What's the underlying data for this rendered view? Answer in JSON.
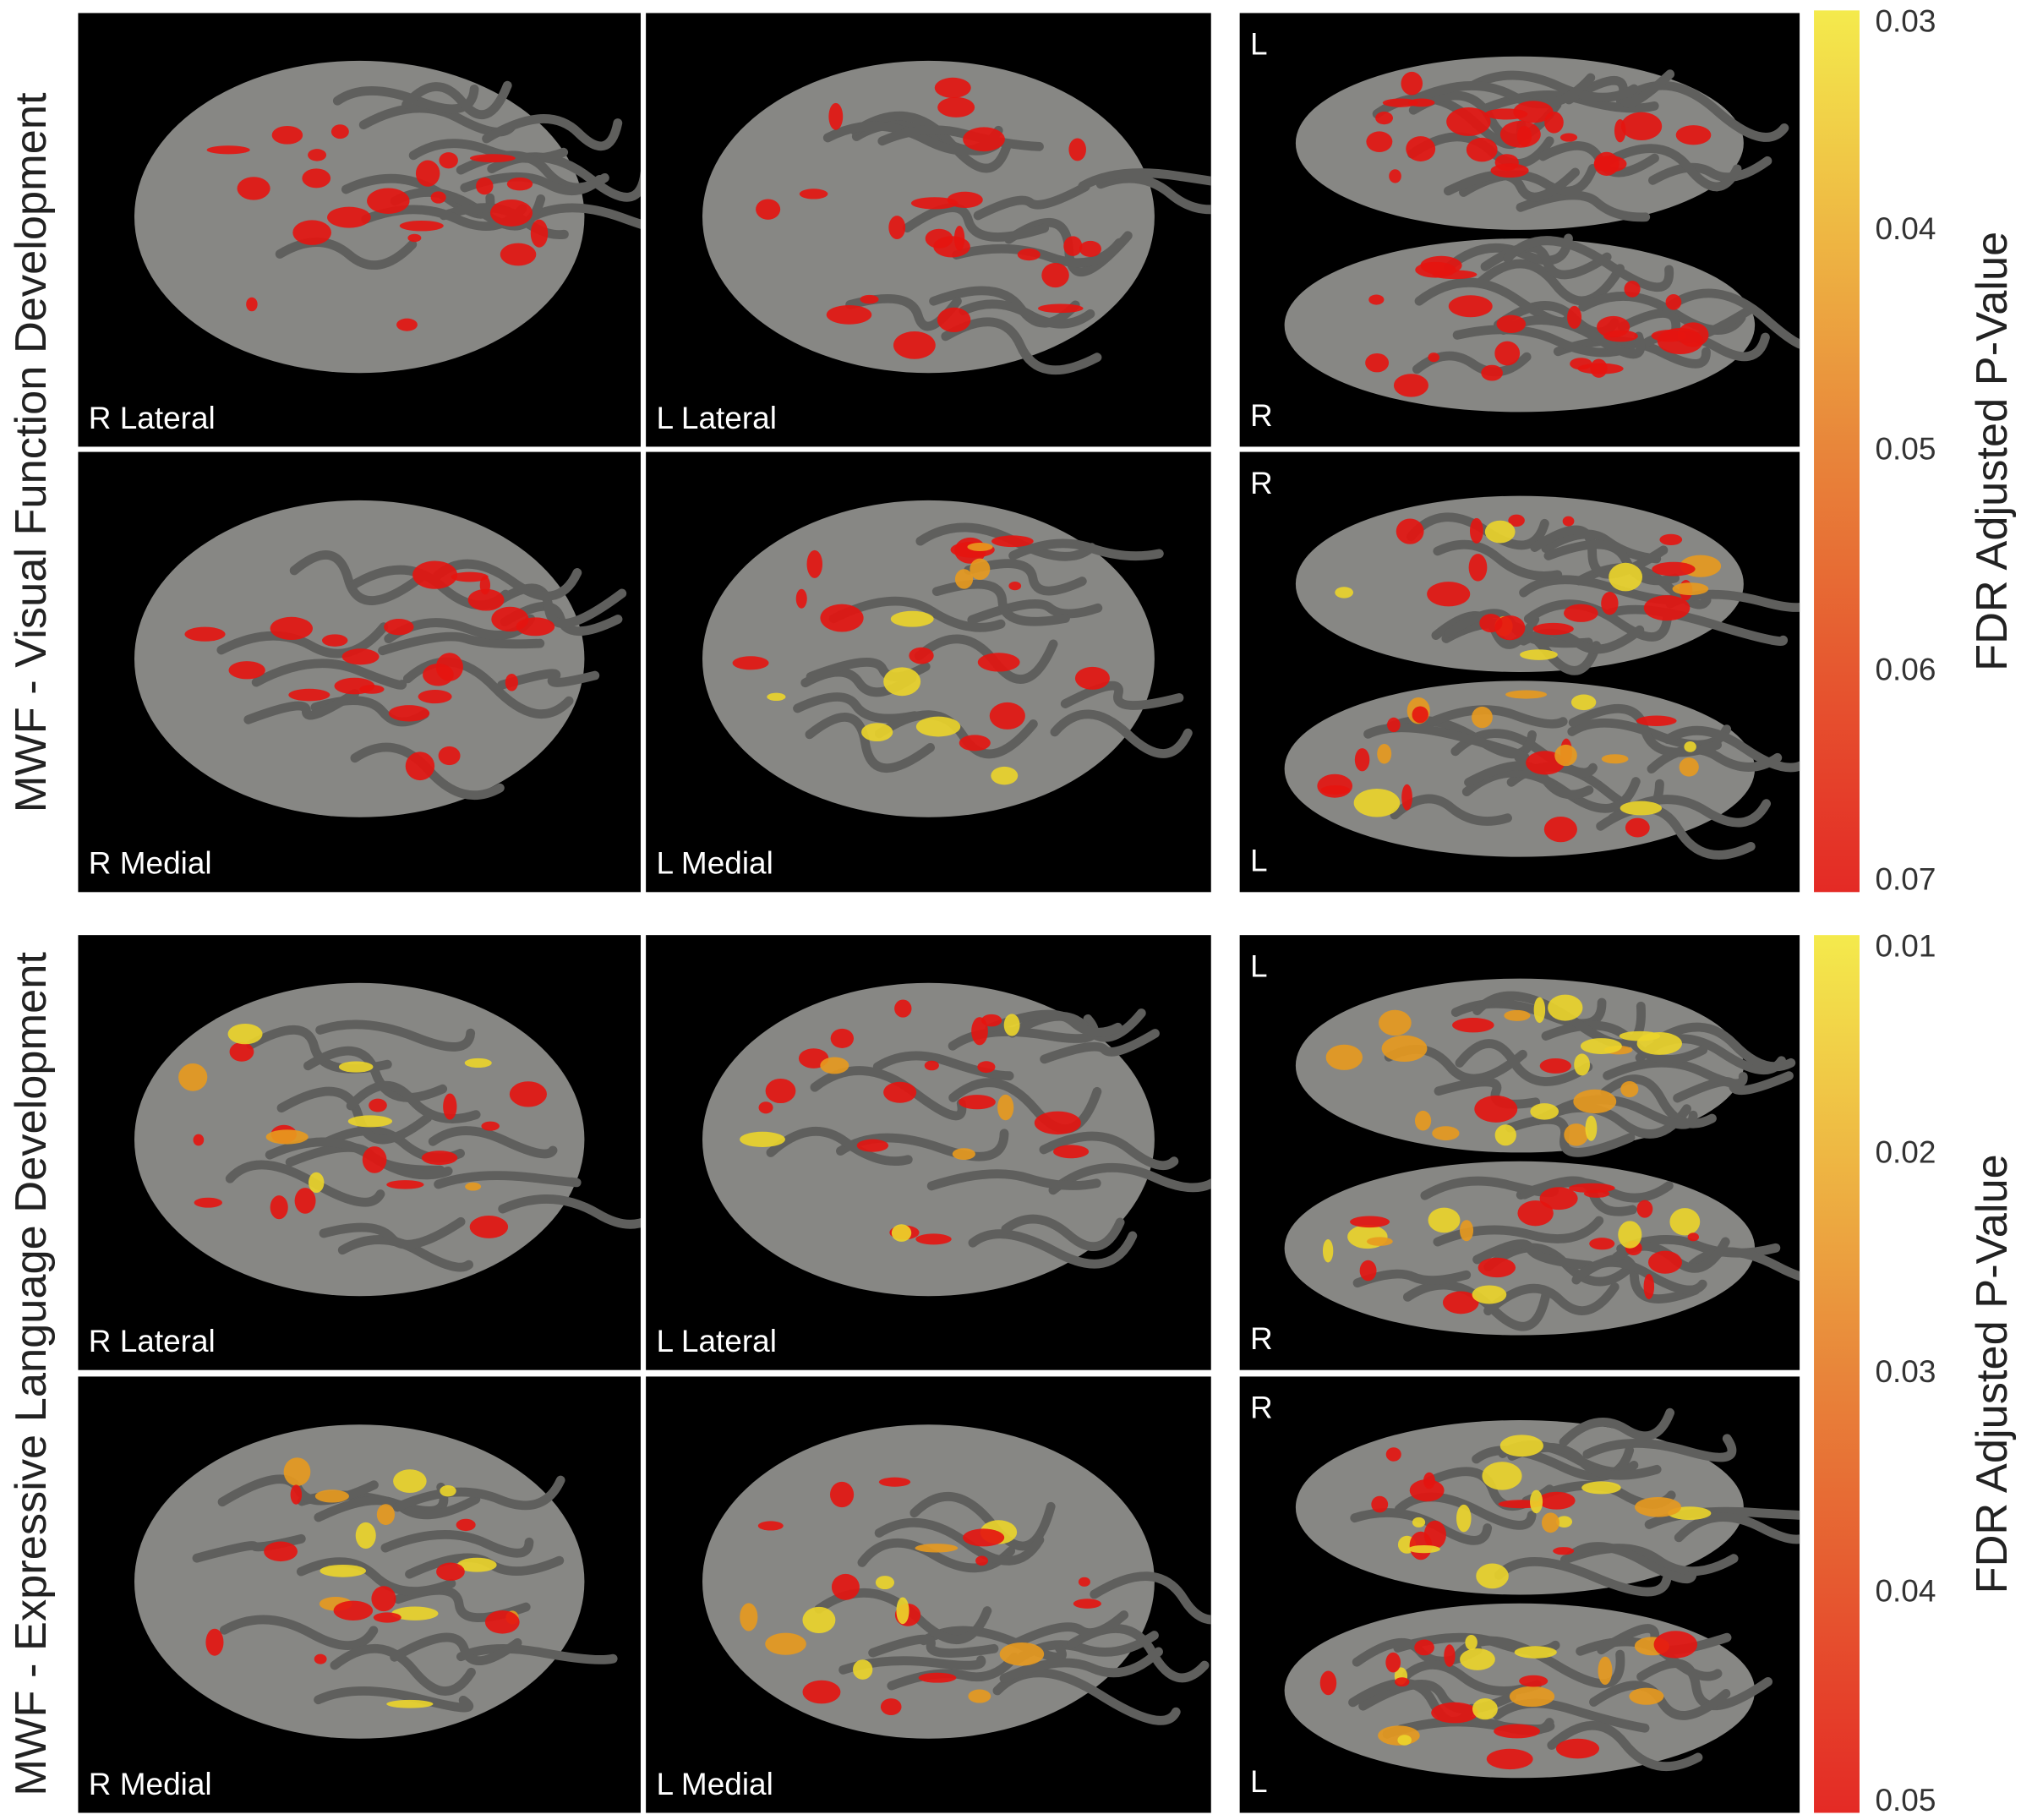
{
  "panels": [
    {
      "title": "MWF - Visual Function Development",
      "views": [
        {
          "label": "R Lateral"
        },
        {
          "label": "L Lateral"
        },
        {
          "labels": [
            "L",
            "R"
          ]
        },
        {
          "label": "R Medial"
        },
        {
          "label": "L Medial"
        },
        {
          "labels": [
            "R",
            "L"
          ]
        }
      ],
      "colorbar": {
        "label": "FDR Adjusted P-Value",
        "range": [
          0.03,
          0.07
        ],
        "ticks": [
          0.03,
          0.04,
          0.05,
          0.06,
          0.07
        ]
      }
    },
    {
      "title": "MWF - Expressive Language Development",
      "views": [
        {
          "label": "R Lateral"
        },
        {
          "label": "L Lateral"
        },
        {
          "labels": [
            "L",
            "R"
          ]
        },
        {
          "label": "R Medial"
        },
        {
          "label": "L Medial"
        },
        {
          "labels": [
            "R",
            "L"
          ]
        }
      ],
      "colorbar": {
        "label": "FDR Adjusted P-Value",
        "range": [
          0.01,
          0.05
        ],
        "ticks": [
          0.01,
          0.02,
          0.03,
          0.04,
          0.05
        ]
      }
    }
  ]
}
